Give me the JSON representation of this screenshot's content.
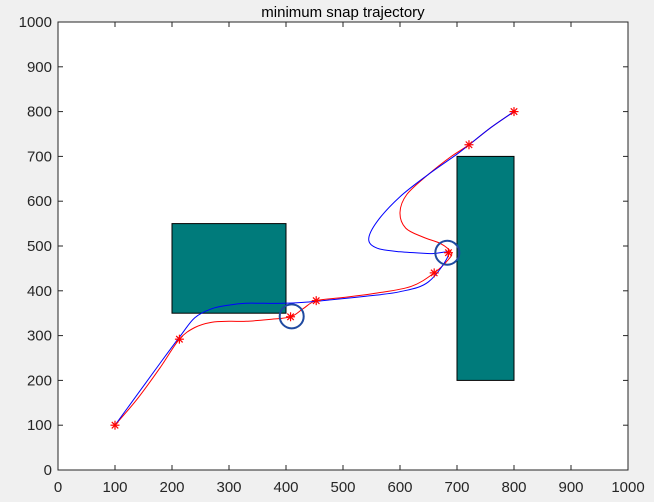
{
  "chart_data": {
    "type": "scatter",
    "title": "minimum snap trajectory",
    "xlabel": "",
    "ylabel": "",
    "xlim": [
      0,
      1000
    ],
    "ylim": [
      0,
      1000
    ],
    "xticks": [
      0,
      100,
      200,
      300,
      400,
      500,
      600,
      700,
      800,
      900,
      1000
    ],
    "yticks": [
      0,
      100,
      200,
      300,
      400,
      500,
      600,
      700,
      800,
      900,
      1000
    ],
    "grid": false,
    "legend": "none",
    "obstacles": [
      {
        "x": [
          200,
          400
        ],
        "y": [
          350,
          550
        ],
        "color": "#007b7b"
      },
      {
        "x": [
          700,
          800
        ],
        "y": [
          200,
          700
        ],
        "color": "#007b7b"
      }
    ],
    "series": [
      {
        "kind": "line",
        "color": "#ff0000",
        "x": [
          100,
          140,
          180,
          213,
          240,
          270,
          300,
          330,
          370,
          408,
          430,
          453,
          500,
          560,
          620,
          660,
          685,
          690,
          672,
          640,
          610,
          600,
          612,
          650,
          690,
          721,
          760,
          800
        ],
        "y": [
          100,
          160,
          230,
          292,
          318,
          330,
          332,
          332,
          336,
          342,
          360,
          378,
          385,
          395,
          410,
          440,
          470,
          485,
          505,
          520,
          540,
          575,
          615,
          660,
          700,
          726,
          765,
          800
        ]
      },
      {
        "kind": "line",
        "color": "#0000ff",
        "x": [
          100,
          140,
          180,
          215,
          240,
          270,
          300,
          330,
          360,
          395,
          430,
          480,
          540,
          600,
          650,
          685,
          655,
          600,
          560,
          545,
          560,
          600,
          650,
          700,
          721,
          760,
          800
        ],
        "y": [
          100,
          170,
          240,
          300,
          340,
          360,
          368,
          372,
          372,
          372,
          374,
          380,
          388,
          398,
          420,
          482,
          483,
          487,
          495,
          515,
          555,
          610,
          660,
          705,
          726,
          765,
          800
        ]
      },
      {
        "kind": "markers",
        "marker": "asterisk",
        "color": "#ff0000",
        "x": [
          100,
          213,
          408,
          453,
          660,
          685,
          721,
          800
        ],
        "y": [
          100,
          292,
          342,
          378,
          440,
          485,
          726,
          800
        ]
      }
    ],
    "annotations": [
      {
        "type": "circle",
        "cx": 410,
        "cy": 343,
        "color": "#1f4aa0"
      },
      {
        "type": "circle",
        "cx": 683,
        "cy": 485,
        "color": "#1f4aa0"
      }
    ]
  }
}
